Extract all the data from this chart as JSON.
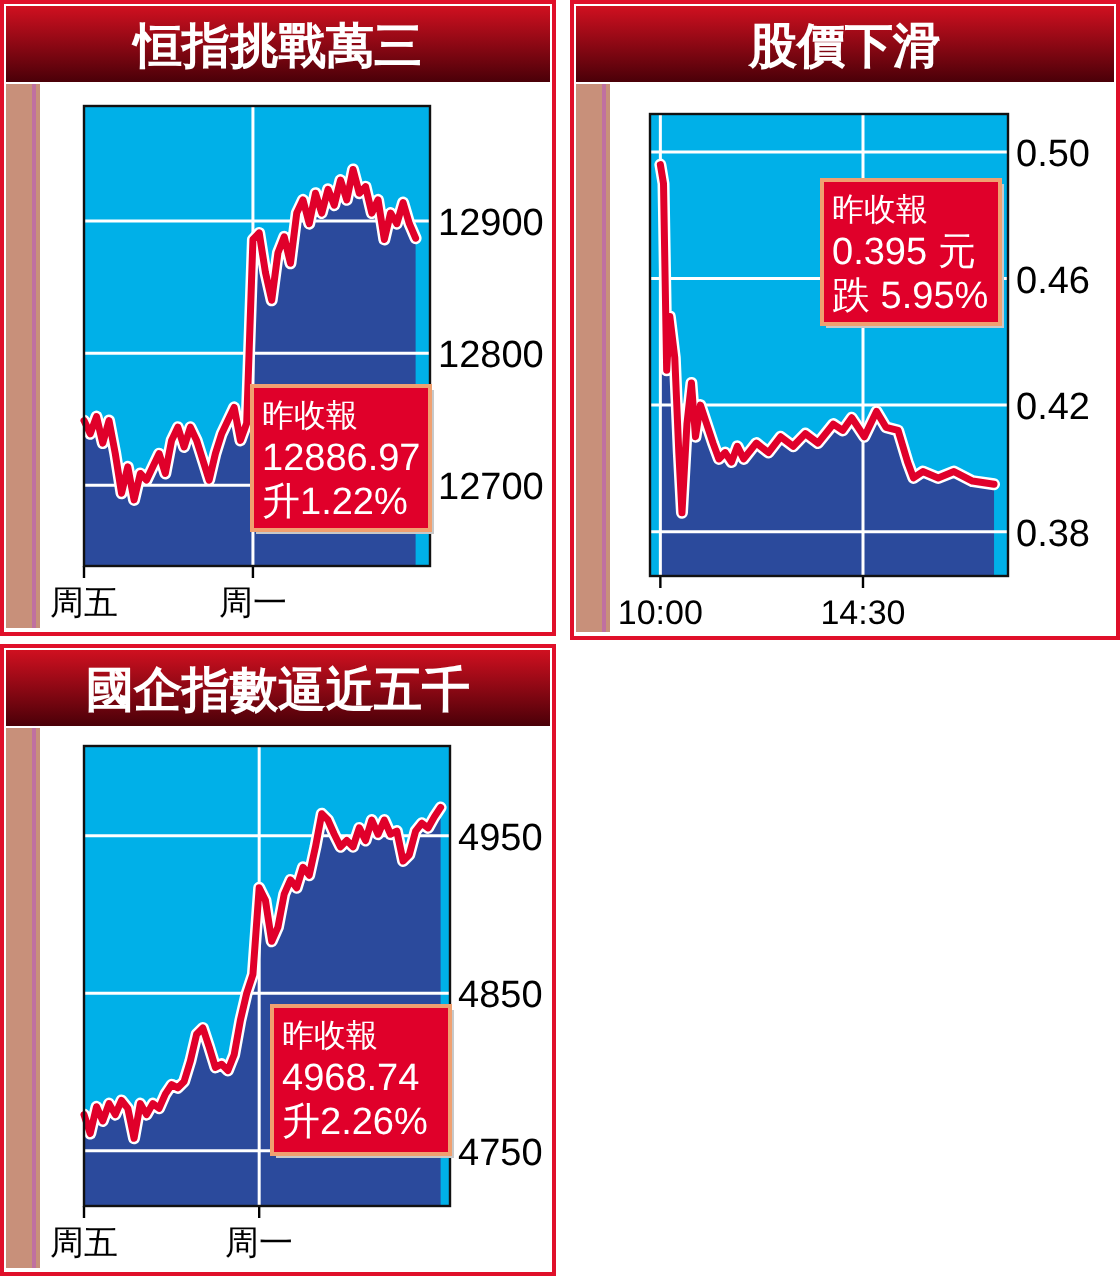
{
  "chart_data": [
    {
      "type": "area",
      "title": "恒指挑戰萬三",
      "categories": [
        "周五",
        null,
        null,
        null,
        null,
        null,
        null,
        null,
        null,
        null,
        null,
        null,
        null,
        null,
        null,
        null,
        null,
        null,
        null,
        null,
        null,
        null,
        null,
        null,
        null,
        null,
        null,
        "周一",
        null,
        null,
        null,
        null,
        null,
        null,
        null,
        null,
        null,
        null,
        null,
        null,
        null,
        null,
        null,
        null,
        null,
        null,
        null,
        null,
        null,
        null,
        null,
        null,
        null,
        null
      ],
      "ylim": [
        12639,
        12987
      ],
      "yticks": [
        12700,
        12800,
        12900
      ],
      "grid": true,
      "annotations": [
        "昨收報",
        "12886.97",
        "升1.22%"
      ],
      "series": [
        {
          "type": "area",
          "color": "#2b4a9c",
          "values": [
            12749,
            12739,
            12752,
            12732,
            12749,
            12724,
            12694,
            12714,
            12689,
            12709,
            12704,
            12714,
            12724,
            12709,
            12734,
            12744,
            12729,
            12744,
            12734,
            12719,
            12704,
            12724,
            12739,
            12749,
            12759,
            12734,
            12747,
            12886,
            12891,
            12861,
            12840,
            12876,
            12888,
            12868,
            12906,
            12916,
            12898,
            12921,
            12906,
            12924,
            12912,
            12931,
            12916,
            12939,
            12921,
            12926,
            12906,
            12916,
            12886,
            12906,
            12898,
            12914,
            12898,
            12887
          ]
        },
        {
          "type": "line",
          "color": "#e0002a",
          "values": [
            12749,
            12739,
            12752,
            12732,
            12749,
            12724,
            12694,
            12714,
            12689,
            12709,
            12704,
            12714,
            12724,
            12709,
            12734,
            12744,
            12729,
            12744,
            12734,
            12719,
            12704,
            12724,
            12739,
            12749,
            12759,
            12734,
            12747,
            12886,
            12891,
            12861,
            12840,
            12876,
            12888,
            12868,
            12906,
            12916,
            12898,
            12921,
            12906,
            12924,
            12912,
            12931,
            12916,
            12939,
            12921,
            12926,
            12906,
            12916,
            12886,
            12906,
            12898,
            12914,
            12898,
            12887
          ]
        }
      ]
    },
    {
      "type": "area",
      "title": "股價下滑",
      "xlim": [
        9.77,
        17.72
      ],
      "xticks": [
        {
          "value": 10,
          "label": "10:00"
        },
        {
          "value": 14.5,
          "label": "14:30"
        }
      ],
      "ylim": [
        0.366,
        0.512
      ],
      "yticks": [
        0.38,
        0.42,
        0.46,
        {
          "value": 0.5,
          "label": "0.50"
        }
      ],
      "grid": true,
      "annotations": [
        "昨收報",
        "0.395 元",
        "跌 5.95%"
      ],
      "x": [
        10.0,
        10.07,
        10.14,
        10.21,
        10.32,
        10.41,
        10.48,
        10.59,
        10.69,
        10.78,
        10.89,
        11.03,
        11.17,
        11.3,
        11.44,
        11.58,
        11.71,
        11.85,
        12.13,
        12.4,
        12.67,
        12.95,
        13.22,
        13.5,
        13.84,
        14.05,
        14.25,
        14.53,
        14.8,
        15.01,
        15.28,
        15.49,
        15.62,
        15.83,
        16.17,
        16.52,
        16.93,
        17.41
      ],
      "series": [
        {
          "type": "area",
          "color": "#2b4a9c",
          "values": [
            0.496,
            0.49,
            0.431,
            0.448,
            0.435,
            0.405,
            0.386,
            0.414,
            0.427,
            0.41,
            0.42,
            0.414,
            0.408,
            0.403,
            0.405,
            0.402,
            0.407,
            0.403,
            0.408,
            0.405,
            0.41,
            0.407,
            0.411,
            0.408,
            0.414,
            0.412,
            0.416,
            0.41,
            0.418,
            0.413,
            0.412,
            0.402,
            0.397,
            0.399,
            0.397,
            0.399,
            0.396,
            0.395
          ]
        },
        {
          "type": "line",
          "color": "#e0002a",
          "values": [
            0.496,
            0.49,
            0.431,
            0.448,
            0.435,
            0.405,
            0.386,
            0.414,
            0.427,
            0.41,
            0.42,
            0.414,
            0.408,
            0.403,
            0.405,
            0.402,
            0.407,
            0.403,
            0.408,
            0.405,
            0.41,
            0.407,
            0.411,
            0.408,
            0.414,
            0.412,
            0.416,
            0.41,
            0.418,
            0.413,
            0.412,
            0.402,
            0.397,
            0.399,
            0.397,
            0.399,
            0.396,
            0.395
          ]
        }
      ]
    },
    {
      "type": "area",
      "title": "國企指數逼近五千",
      "categories": [
        "周五",
        null,
        null,
        null,
        null,
        null,
        null,
        null,
        null,
        null,
        null,
        null,
        null,
        null,
        null,
        null,
        null,
        null,
        null,
        null,
        null,
        null,
        null,
        null,
        null,
        null,
        null,
        null,
        "周一",
        null,
        null,
        null,
        null,
        null,
        null,
        null,
        null,
        null,
        null,
        null,
        null,
        null,
        null,
        null,
        null,
        null,
        null,
        null,
        null,
        null,
        null,
        null,
        null,
        null,
        null,
        null,
        null,
        null
      ],
      "ylim": [
        4715,
        5007
      ],
      "yticks": [
        4750,
        4850,
        4950
      ],
      "grid": true,
      "annotations": [
        "昨收報",
        "4968.74",
        "升2.26%"
      ],
      "series": [
        {
          "type": "area",
          "color": "#2b4a9c",
          "values": [
            4773,
            4761,
            4778,
            4769,
            4780,
            4773,
            4782,
            4777,
            4758,
            4780,
            4773,
            4780,
            4777,
            4786,
            4792,
            4790,
            4794,
            4807,
            4824,
            4828,
            4816,
            4803,
            4805,
            4801,
            4811,
            4833,
            4850,
            4862,
            4917,
            4909,
            4883,
            4892,
            4913,
            4922,
            4917,
            4930,
            4925,
            4943,
            4964,
            4960,
            4951,
            4943,
            4947,
            4943,
            4955,
            4947,
            4960,
            4951,
            4960,
            4951,
            4953,
            4934,
            4938,
            4953,
            4958,
            4955,
            4962,
            4968
          ]
        },
        {
          "type": "line",
          "color": "#e0002a",
          "values": [
            4773,
            4761,
            4778,
            4769,
            4780,
            4773,
            4782,
            4777,
            4758,
            4780,
            4773,
            4780,
            4777,
            4786,
            4792,
            4790,
            4794,
            4807,
            4824,
            4828,
            4816,
            4803,
            4805,
            4801,
            4811,
            4833,
            4850,
            4862,
            4917,
            4909,
            4883,
            4892,
            4913,
            4922,
            4917,
            4930,
            4925,
            4943,
            4964,
            4960,
            4951,
            4943,
            4947,
            4943,
            4955,
            4947,
            4960,
            4951,
            4960,
            4951,
            4953,
            4934,
            4938,
            4953,
            4958,
            4955,
            4962,
            4968
          ]
        }
      ]
    }
  ]
}
